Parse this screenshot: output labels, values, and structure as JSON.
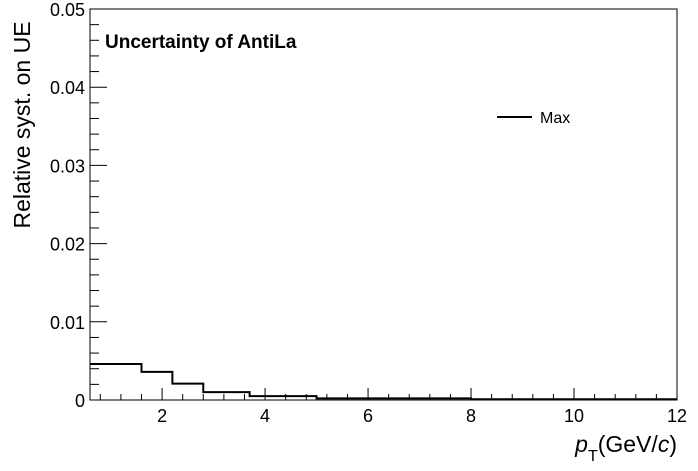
{
  "chart_data": {
    "type": "line",
    "title": "Uncertainty of AntiLa",
    "ylabel": "Relative syst. on UE",
    "xlabel": {
      "p": "p",
      "sub": "T",
      "unit_pre": "(GeV/",
      "unit_c": "c",
      "unit_post": ")"
    },
    "xlim": [
      0.6,
      12
    ],
    "ylim": [
      0,
      0.05
    ],
    "x_ticks": [
      "2",
      "4",
      "6",
      "8",
      "10",
      "12"
    ],
    "y_ticks": [
      "0",
      "0.01",
      "0.02",
      "0.03",
      "0.04",
      "0.05"
    ],
    "grid": false,
    "legend_position": "top-right",
    "series": [
      {
        "name": "Max",
        "color": "#000000",
        "step": true,
        "bin_edges": [
          0.6,
          1.6,
          2.2,
          2.8,
          3.7,
          5.0,
          8.0,
          12.0
        ],
        "values": [
          0.0046,
          0.0036,
          0.0021,
          0.001,
          0.0005,
          0.0002,
          0.0001
        ]
      }
    ]
  }
}
